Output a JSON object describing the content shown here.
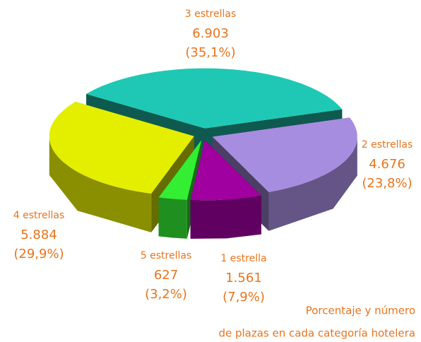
{
  "chart_data": {
    "type": "pie",
    "title": [
      "Porcentaje y número",
      "de plazas en cada categoría hotelera"
    ],
    "categories": [
      "3 estrellas",
      "2 estrellas",
      "1 estrella",
      "5 estrellas",
      "4 estrellas"
    ],
    "values": [
      6903,
      4676,
      1561,
      627,
      5884
    ],
    "value_labels": [
      "6.903",
      "4.676",
      "1.561",
      "627",
      "5.884"
    ],
    "percent_labels": [
      "(35,1%)",
      "(23,8%)",
      "(7,9%)",
      "(3,2%)",
      "(29,9%)"
    ],
    "colors": [
      "#1fc8b4",
      "#a78de0",
      "#a000a0",
      "#33ee33",
      "#e4ef00"
    ]
  }
}
